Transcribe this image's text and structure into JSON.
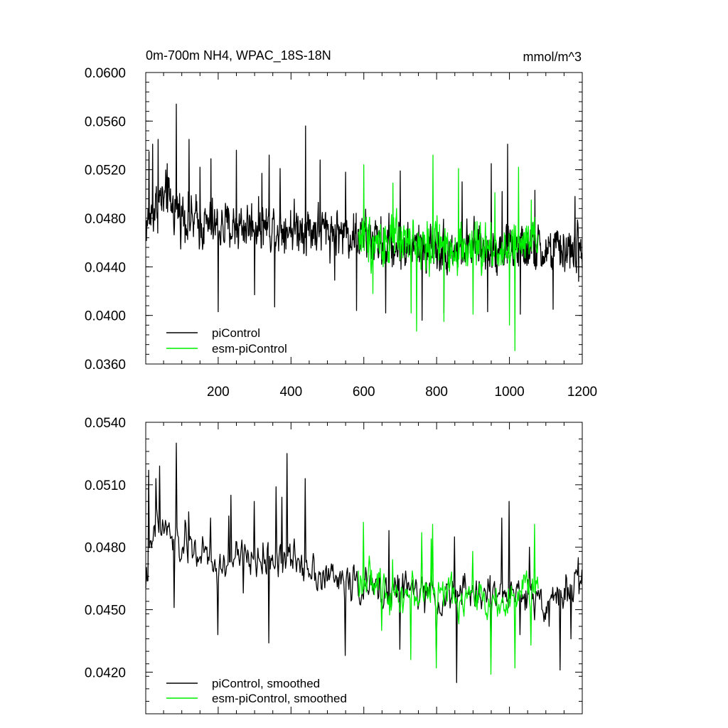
{
  "figure": {
    "title": "0m-700m NH4, WPAC_18S-18N",
    "units": "mmol/m^3"
  },
  "colors": {
    "piControl": "#000000",
    "esm_piControl": "#00ee00",
    "axes": "#000000",
    "background": "#ffffff"
  },
  "chart_data": [
    {
      "type": "line",
      "panel": "top",
      "title": "0m-700m NH4, WPAC_18S-18N",
      "units_label": "mmol/m^3",
      "xlabel": "",
      "ylabel": "",
      "xlim": [
        1,
        1200
      ],
      "ylim": [
        0.036,
        0.06
      ],
      "xticks": [
        200,
        400,
        600,
        800,
        1000,
        1200
      ],
      "xtick_labels": [
        "200",
        "400",
        "600",
        "800",
        "1000",
        "1200"
      ],
      "yticks": [
        0.036,
        0.04,
        0.044,
        0.048,
        0.052,
        0.056,
        0.06
      ],
      "ytick_labels": [
        "0.0360",
        "0.0400",
        "0.0440",
        "0.0480",
        "0.0520",
        "0.0560",
        "0.0600"
      ],
      "grid": false,
      "legend_position": "bottom-left",
      "series": [
        {
          "name": "piControl",
          "color": "#000000",
          "x_start": 1,
          "x_end": 1200,
          "step": 1,
          "noise_amplitude": 0.0027,
          "anchors": [
            [
              1,
              0.0475
            ],
            [
              40,
              0.0495
            ],
            [
              80,
              0.049
            ],
            [
              130,
              0.0477
            ],
            [
              200,
              0.0472
            ],
            [
              300,
              0.0475
            ],
            [
              400,
              0.0473
            ],
            [
              500,
              0.047
            ],
            [
              600,
              0.0465
            ],
            [
              700,
              0.0456
            ],
            [
              800,
              0.0457
            ],
            [
              900,
              0.0455
            ],
            [
              1000,
              0.0456
            ],
            [
              1100,
              0.0452
            ],
            [
              1200,
              0.0455
            ]
          ],
          "peaks": [
            [
              10,
              0.0535
            ],
            [
              20,
              0.0541
            ],
            [
              35,
              0.0545
            ],
            [
              60,
              0.0525
            ],
            [
              85,
              0.0574
            ],
            [
              120,
              0.0545
            ],
            [
              150,
              0.0522
            ],
            [
              180,
              0.0529
            ],
            [
              200,
              0.0403
            ],
            [
              250,
              0.0536
            ],
            [
              300,
              0.0417
            ],
            [
              320,
              0.0517
            ],
            [
              340,
              0.0532
            ],
            [
              355,
              0.0407
            ],
            [
              370,
              0.0521
            ],
            [
              440,
              0.0556
            ],
            [
              480,
              0.0528
            ],
            [
              520,
              0.0429
            ],
            [
              550,
              0.0518
            ],
            [
              580,
              0.0404
            ],
            [
              660,
              0.0402
            ],
            [
              700,
              0.0519
            ],
            [
              760,
              0.0396
            ],
            [
              820,
              0.0402
            ],
            [
              870,
              0.051
            ],
            [
              940,
              0.0403
            ],
            [
              950,
              0.0525
            ],
            [
              980,
              0.0502
            ],
            [
              995,
              0.0541
            ],
            [
              1030,
              0.0401
            ],
            [
              1070,
              0.0503
            ],
            [
              1120,
              0.0405
            ],
            [
              1180,
              0.0498
            ],
            [
              1190,
              0.0428
            ]
          ]
        },
        {
          "name": "esm-piControl",
          "color": "#00ee00",
          "x_start": 585,
          "x_end": 1080,
          "step": 1,
          "noise_amplitude": 0.0027,
          "anchors": [
            [
              585,
              0.0465
            ],
            [
              700,
              0.0459
            ],
            [
              800,
              0.0458
            ],
            [
              900,
              0.0455
            ],
            [
              1000,
              0.0455
            ],
            [
              1080,
              0.0458
            ]
          ],
          "peaks": [
            [
              600,
              0.0524
            ],
            [
              625,
              0.0418
            ],
            [
              680,
              0.0509
            ],
            [
              730,
              0.0402
            ],
            [
              745,
              0.0387
            ],
            [
              790,
              0.0532
            ],
            [
              820,
              0.0395
            ],
            [
              860,
              0.0521
            ],
            [
              900,
              0.0401
            ],
            [
              960,
              0.0501
            ],
            [
              1000,
              0.0392
            ],
            [
              1015,
              0.0371
            ],
            [
              1025,
              0.0522
            ],
            [
              1060,
              0.0495
            ]
          ]
        }
      ]
    },
    {
      "type": "line",
      "panel": "bottom",
      "title": "",
      "xlabel": "",
      "ylabel": "",
      "xlim": [
        1,
        1200
      ],
      "ylim": [
        0.04,
        0.054
      ],
      "xticks": [
        200,
        400,
        600,
        800,
        1000,
        1200
      ],
      "yticks": [
        0.042,
        0.045,
        0.048,
        0.051,
        0.054
      ],
      "ytick_labels": [
        "0.0420",
        "0.0450",
        "0.0480",
        "0.0510",
        "0.0540"
      ],
      "grid": false,
      "legend_position": "bottom-left",
      "series": [
        {
          "name": "piControl, smoothed",
          "color": "#000000",
          "x_start": 1,
          "x_end": 1200,
          "step": 2,
          "noise_amplitude": 0.0012,
          "anchors": [
            [
              1,
              0.0465
            ],
            [
              30,
              0.049
            ],
            [
              60,
              0.0488
            ],
            [
              90,
              0.048
            ],
            [
              150,
              0.0478
            ],
            [
              200,
              0.0468
            ],
            [
              250,
              0.0475
            ],
            [
              300,
              0.0474
            ],
            [
              350,
              0.0475
            ],
            [
              400,
              0.0474
            ],
            [
              450,
              0.0472
            ],
            [
              500,
              0.0465
            ],
            [
              550,
              0.0464
            ],
            [
              600,
              0.0461
            ],
            [
              650,
              0.0458
            ],
            [
              700,
              0.0461
            ],
            [
              800,
              0.0455
            ],
            [
              900,
              0.0458
            ],
            [
              1000,
              0.0458
            ],
            [
              1100,
              0.0455
            ],
            [
              1200,
              0.0462
            ]
          ],
          "peaks": [
            [
              10,
              0.0517
            ],
            [
              30,
              0.0513
            ],
            [
              40,
              0.0519
            ],
            [
              80,
              0.0451
            ],
            [
              85,
              0.053
            ],
            [
              110,
              0.0493
            ],
            [
              120,
              0.0497
            ],
            [
              180,
              0.0494
            ],
            [
              200,
              0.0438
            ],
            [
              230,
              0.0495
            ],
            [
              235,
              0.0505
            ],
            [
              270,
              0.0458
            ],
            [
              300,
              0.0502
            ],
            [
              340,
              0.0434
            ],
            [
              360,
              0.0509
            ],
            [
              375,
              0.0504
            ],
            [
              390,
              0.0525
            ],
            [
              440,
              0.0513
            ],
            [
              550,
              0.0428
            ],
            [
              600,
              0.0455
            ],
            [
              620,
              0.0464
            ],
            [
              670,
              0.0488
            ],
            [
              700,
              0.0431
            ],
            [
              800,
              0.0428
            ],
            [
              850,
              0.0485
            ],
            [
              855,
              0.0415
            ],
            [
              950,
              0.0479
            ],
            [
              950,
              0.0427
            ],
            [
              980,
              0.0494
            ],
            [
              1000,
              0.0502
            ],
            [
              1030,
              0.0438
            ],
            [
              1055,
              0.048
            ],
            [
              1110,
              0.0442
            ],
            [
              1140,
              0.0421
            ],
            [
              1170,
              0.0436
            ],
            [
              1190,
              0.0475
            ]
          ]
        },
        {
          "name": "esm-piControl, smoothed",
          "color": "#00ee00",
          "x_start": 585,
          "x_end": 1080,
          "step": 2,
          "noise_amplitude": 0.0012,
          "anchors": [
            [
              585,
              0.0465
            ],
            [
              700,
              0.0458
            ],
            [
              800,
              0.0458
            ],
            [
              900,
              0.0455
            ],
            [
              1000,
              0.0455
            ],
            [
              1080,
              0.0462
            ]
          ],
          "peaks": [
            [
              600,
              0.0492
            ],
            [
              650,
              0.044
            ],
            [
              680,
              0.0474
            ],
            [
              730,
              0.0426
            ],
            [
              760,
              0.0487
            ],
            [
              785,
              0.0484
            ],
            [
              790,
              0.0491
            ],
            [
              800,
              0.0422
            ],
            [
              900,
              0.0478
            ],
            [
              950,
              0.0419
            ],
            [
              1015,
              0.0422
            ],
            [
              1070,
              0.0491
            ],
            [
              1060,
              0.0433
            ]
          ]
        }
      ]
    }
  ]
}
